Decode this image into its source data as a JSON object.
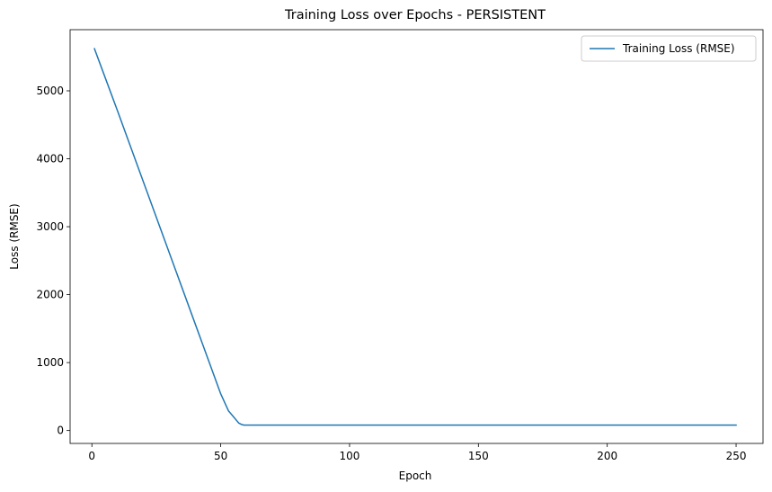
{
  "chart_data": {
    "type": "line",
    "title": "Training Loss over Epochs - PERSISTENT",
    "xlabel": "Epoch",
    "ylabel": "Loss (RMSE)",
    "xlim": [
      -8.45,
      260.45
    ],
    "ylim": [
      -190,
      5900
    ],
    "xticks": [
      0,
      50,
      100,
      150,
      200,
      250
    ],
    "yticks": [
      0,
      1000,
      2000,
      3000,
      4000,
      5000
    ],
    "grid": false,
    "legend_position": "top-right",
    "series": [
      {
        "name": "Training Loss (RMSE)",
        "color": "#1f77b4",
        "x": [
          1,
          10,
          20,
          30,
          40,
          50,
          53,
          55,
          56,
          57,
          58,
          59,
          60,
          70,
          100,
          150,
          200,
          250
        ],
        "y": [
          5620,
          4700,
          3660,
          2620,
          1580,
          540,
          290,
          200,
          155,
          110,
          90,
          80,
          80,
          80,
          80,
          80,
          80,
          80
        ]
      }
    ]
  }
}
